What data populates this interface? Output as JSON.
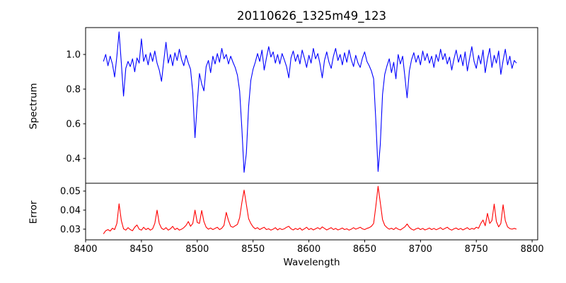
{
  "figure": {
    "background": "#ffffff",
    "axis_color": "#000000"
  },
  "chart_data": {
    "type": "line",
    "title": "20110626_1325m49_123",
    "xlabel": "Wavelength",
    "xlim": [
      8400,
      8805
    ],
    "xticks": [
      8400,
      8450,
      8500,
      8550,
      8600,
      8650,
      8700,
      8750,
      8800
    ],
    "x_start": 8416,
    "x_step": 2,
    "grid": false,
    "legend": "none",
    "panels": [
      {
        "name": "spectrum",
        "ylabel": "Spectrum",
        "color": "#0000ff",
        "ylim": [
          0.257,
          1.155
        ],
        "yticks": [
          1.0,
          0.8,
          0.6,
          0.4
        ],
        "ytick_labels": [
          "1.0",
          "0.8",
          "0.6",
          "0.4"
        ],
        "values": [
          0.96,
          1.0,
          0.935,
          0.99,
          0.945,
          0.87,
          0.99,
          1.13,
          0.95,
          0.76,
          0.92,
          0.96,
          0.93,
          0.975,
          0.9,
          0.98,
          0.95,
          1.09,
          0.96,
          1.0,
          0.94,
          1.01,
          0.96,
          1.02,
          0.95,
          0.91,
          0.845,
          0.96,
          1.07,
          0.95,
          1.0,
          0.935,
          1.01,
          0.965,
          1.03,
          0.97,
          0.935,
          0.995,
          0.95,
          0.915,
          0.78,
          0.52,
          0.72,
          0.89,
          0.83,
          0.79,
          0.93,
          0.965,
          0.895,
          0.99,
          0.945,
          1.005,
          0.955,
          1.035,
          0.975,
          1.0,
          0.945,
          0.99,
          0.955,
          0.925,
          0.88,
          0.79,
          0.57,
          0.32,
          0.43,
          0.7,
          0.85,
          0.915,
          0.955,
          1.005,
          0.96,
          1.025,
          0.91,
          0.98,
          1.045,
          0.985,
          1.015,
          0.95,
          1.0,
          0.945,
          1.005,
          0.97,
          0.93,
          0.865,
          0.98,
          1.02,
          0.96,
          1.0,
          0.945,
          1.025,
          0.98,
          0.925,
          0.995,
          0.95,
          1.035,
          0.975,
          1.005,
          0.945,
          0.865,
          0.965,
          1.015,
          0.955,
          0.92,
          0.99,
          1.035,
          0.965,
          1.0,
          0.94,
          1.01,
          0.955,
          1.025,
          0.97,
          0.93,
          0.995,
          0.95,
          0.925,
          0.98,
          1.015,
          0.96,
          0.935,
          0.905,
          0.86,
          0.62,
          0.325,
          0.48,
          0.77,
          0.885,
          0.935,
          0.975,
          0.895,
          0.955,
          0.86,
          1.0,
          0.945,
          0.99,
          0.875,
          0.75,
          0.905,
          0.97,
          1.01,
          0.955,
          0.995,
          0.94,
          1.02,
          0.965,
          1.005,
          0.95,
          0.99,
          0.925,
          1.0,
          0.96,
          1.03,
          0.97,
          1.005,
          0.945,
          0.985,
          0.91,
          0.975,
          1.025,
          0.955,
          1.0,
          0.935,
          1.015,
          0.905,
          0.98,
          1.045,
          0.96,
          0.92,
          0.995,
          0.945,
          1.025,
          0.895,
          0.975,
          1.035,
          0.925,
          0.995,
          0.95,
          1.02,
          0.885,
          0.965,
          1.03,
          0.94,
          0.99,
          0.92,
          0.965,
          0.95
        ]
      },
      {
        "name": "error",
        "ylabel": "Error",
        "color": "#ff0000",
        "ylim": [
          0.0244,
          0.0541
        ],
        "yticks": [
          0.05,
          0.04,
          0.03
        ],
        "ytick_labels": [
          "0.05",
          "0.04",
          "0.03"
        ],
        "values": [
          0.0275,
          0.0292,
          0.0298,
          0.029,
          0.0305,
          0.0298,
          0.033,
          0.0433,
          0.0345,
          0.0302,
          0.0295,
          0.0308,
          0.0298,
          0.0292,
          0.031,
          0.0322,
          0.03,
          0.0295,
          0.031,
          0.0298,
          0.0305,
          0.0295,
          0.0302,
          0.033,
          0.04,
          0.033,
          0.0305,
          0.0298,
          0.0308,
          0.0295,
          0.0302,
          0.0315,
          0.0298,
          0.0305,
          0.0295,
          0.03,
          0.0308,
          0.032,
          0.034,
          0.0315,
          0.033,
          0.04,
          0.0335,
          0.033,
          0.0398,
          0.034,
          0.031,
          0.03,
          0.0306,
          0.0298,
          0.0304,
          0.031,
          0.0298,
          0.0305,
          0.032,
          0.0388,
          0.0345,
          0.0315,
          0.031,
          0.0318,
          0.0325,
          0.036,
          0.044,
          0.0505,
          0.043,
          0.0355,
          0.033,
          0.0312,
          0.0302,
          0.0308,
          0.0298,
          0.0305,
          0.031,
          0.0298,
          0.0302,
          0.0295,
          0.03,
          0.0308,
          0.0296,
          0.0304,
          0.0298,
          0.0302,
          0.031,
          0.0315,
          0.0302,
          0.0296,
          0.0304,
          0.0298,
          0.0306,
          0.0295,
          0.0302,
          0.031,
          0.0298,
          0.0304,
          0.0296,
          0.0302,
          0.0308,
          0.03,
          0.0312,
          0.0304,
          0.0296,
          0.0302,
          0.0308,
          0.0298,
          0.0304,
          0.0296,
          0.03,
          0.0306,
          0.0298,
          0.0302,
          0.0295,
          0.03,
          0.0308,
          0.03,
          0.0305,
          0.031,
          0.0302,
          0.0298,
          0.0304,
          0.0308,
          0.0315,
          0.033,
          0.042,
          0.0525,
          0.044,
          0.035,
          0.032,
          0.0308,
          0.03,
          0.0305,
          0.0298,
          0.0308,
          0.03,
          0.0296,
          0.0304,
          0.0312,
          0.0327,
          0.031,
          0.03,
          0.0295,
          0.0302,
          0.0306,
          0.0298,
          0.0304,
          0.0296,
          0.03,
          0.0306,
          0.0298,
          0.0304,
          0.0297,
          0.0302,
          0.0308,
          0.0298,
          0.0304,
          0.031,
          0.03,
          0.0295,
          0.0302,
          0.0306,
          0.0298,
          0.0304,
          0.0296,
          0.0302,
          0.0308,
          0.0298,
          0.0304,
          0.03,
          0.031,
          0.0305,
          0.033,
          0.0348,
          0.0318,
          0.0383,
          0.033,
          0.0345,
          0.0432,
          0.034,
          0.0312,
          0.033,
          0.0428,
          0.0345,
          0.0312,
          0.0303,
          0.03,
          0.0304,
          0.03
        ]
      }
    ]
  }
}
